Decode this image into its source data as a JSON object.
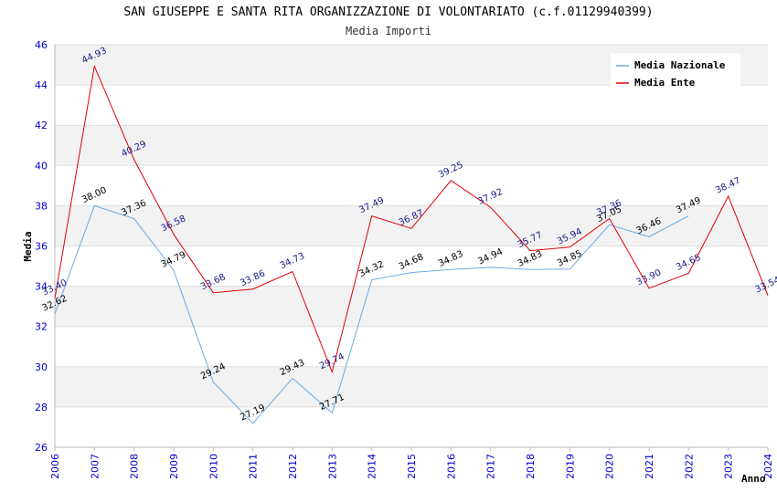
{
  "chart_data": {
    "type": "line",
    "title": "SAN GIUSEPPE E SANTA RITA ORGANIZZAZIONE DI VOLONTARIATO (c.f.01129940399)",
    "subtitle": "Media Importi",
    "xlabel": "Anno",
    "ylabel": "Media",
    "ylim": [
      26,
      46
    ],
    "yticks": [
      "26",
      "28",
      "30",
      "32",
      "34",
      "36",
      "38",
      "40",
      "42",
      "44",
      "46"
    ],
    "categories": [
      "2006",
      "2007",
      "2008",
      "2009",
      "2010",
      "2011",
      "2012",
      "2013",
      "2014",
      "2015",
      "2016",
      "2017",
      "2018",
      "2019",
      "2020",
      "2021",
      "2022",
      "2023",
      "2024"
    ],
    "legend_position": "top-right",
    "series": [
      {
        "name": "Media Nazionale",
        "color": "#6aaae8",
        "values": [
          32.62,
          38.0,
          37.36,
          34.79,
          29.24,
          27.19,
          29.43,
          27.71,
          34.32,
          34.68,
          34.83,
          34.94,
          34.83,
          34.85,
          37.05,
          36.46,
          37.49,
          null,
          null
        ],
        "labels": [
          "32.62",
          "38.00",
          "37.36",
          "34.79",
          "29.24",
          "27.19",
          "29.43",
          "27.71",
          "34.32",
          "34.68",
          "34.83",
          "34.94",
          "34.83",
          "34.85",
          "37.05",
          "36.46",
          "37.49",
          null,
          null
        ]
      },
      {
        "name": "Media Ente",
        "color": "#e00000",
        "values": [
          33.4,
          44.93,
          40.29,
          36.58,
          33.68,
          33.86,
          34.73,
          29.74,
          37.49,
          36.87,
          39.25,
          37.92,
          35.77,
          35.94,
          37.36,
          33.9,
          34.65,
          38.47,
          33.54
        ],
        "labels": [
          "33.40",
          "44.93",
          "40.29",
          "36.58",
          "33.68",
          "33.86",
          "34.73",
          "29.74",
          "37.49",
          "36.87",
          "39.25",
          "37.92",
          "35.77",
          "35.94",
          "37.36",
          "33.90",
          "34.65",
          "38.47",
          "33.54"
        ]
      }
    ]
  }
}
